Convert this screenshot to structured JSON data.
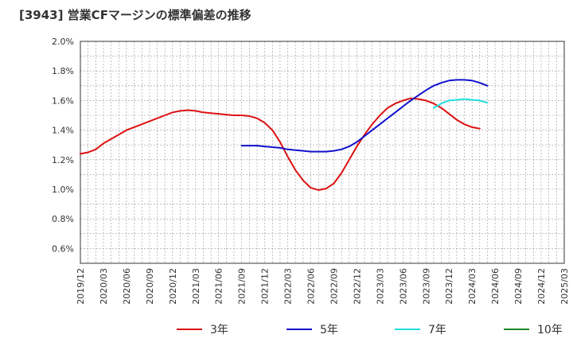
{
  "chart_data": {
    "type": "line",
    "title": "[3943]  営業CFマージンの標準偏差の推移",
    "xlabel": "",
    "ylabel": "",
    "y_unit": "%",
    "ylim": [
      0.5,
      2.0
    ],
    "y_ticks": [
      "0.6%",
      "0.8%",
      "1.0%",
      "1.2%",
      "1.4%",
      "1.6%",
      "1.8%",
      "2.0%"
    ],
    "x_ticks": [
      "2019/12",
      "2020/03",
      "2020/06",
      "2020/09",
      "2020/12",
      "2021/03",
      "2021/06",
      "2021/09",
      "2021/12",
      "2022/03",
      "2022/06",
      "2022/09",
      "2022/12",
      "2023/03",
      "2023/06",
      "2023/09",
      "2023/12",
      "2024/03",
      "2024/06",
      "2024/09",
      "2024/12",
      "2025/03"
    ],
    "grid": true,
    "legend_position": "bottom",
    "series": [
      {
        "name": "3年",
        "color": "#dd1111",
        "points": [
          [
            "2019/12",
            1.24
          ],
          [
            "2020/01",
            1.25
          ],
          [
            "2020/02",
            1.27
          ],
          [
            "2020/03",
            1.31
          ],
          [
            "2020/04",
            1.34
          ],
          [
            "2020/05",
            1.37
          ],
          [
            "2020/06",
            1.4
          ],
          [
            "2020/07",
            1.42
          ],
          [
            "2020/08",
            1.44
          ],
          [
            "2020/09",
            1.46
          ],
          [
            "2020/10",
            1.48
          ],
          [
            "2020/11",
            1.5
          ],
          [
            "2020/12",
            1.52
          ],
          [
            "2021/01",
            1.53
          ],
          [
            "2021/02",
            1.535
          ],
          [
            "2021/03",
            1.53
          ],
          [
            "2021/04",
            1.52
          ],
          [
            "2021/05",
            1.515
          ],
          [
            "2021/06",
            1.51
          ],
          [
            "2021/07",
            1.505
          ],
          [
            "2021/08",
            1.5
          ],
          [
            "2021/09",
            1.5
          ],
          [
            "2021/10",
            1.495
          ],
          [
            "2021/11",
            1.48
          ],
          [
            "2021/12",
            1.45
          ],
          [
            "2022/01",
            1.4
          ],
          [
            "2022/02",
            1.32
          ],
          [
            "2022/03",
            1.22
          ],
          [
            "2022/04",
            1.13
          ],
          [
            "2022/05",
            1.06
          ],
          [
            "2022/06",
            1.01
          ],
          [
            "2022/07",
            0.995
          ],
          [
            "2022/08",
            1.005
          ],
          [
            "2022/09",
            1.04
          ],
          [
            "2022/10",
            1.11
          ],
          [
            "2022/11",
            1.2
          ],
          [
            "2022/12",
            1.29
          ],
          [
            "2023/01",
            1.37
          ],
          [
            "2023/02",
            1.44
          ],
          [
            "2023/03",
            1.5
          ],
          [
            "2023/04",
            1.55
          ],
          [
            "2023/05",
            1.58
          ],
          [
            "2023/06",
            1.6
          ],
          [
            "2023/07",
            1.615
          ],
          [
            "2023/08",
            1.61
          ],
          [
            "2023/09",
            1.6
          ],
          [
            "2023/10",
            1.58
          ],
          [
            "2023/11",
            1.55
          ],
          [
            "2023/12",
            1.51
          ],
          [
            "2024/01",
            1.47
          ],
          [
            "2024/02",
            1.44
          ],
          [
            "2024/03",
            1.42
          ],
          [
            "2024/04",
            1.41
          ]
        ]
      },
      {
        "name": "5年",
        "color": "#1111cc",
        "points": [
          [
            "2021/09",
            1.295
          ],
          [
            "2021/10",
            1.295
          ],
          [
            "2021/11",
            1.295
          ],
          [
            "2021/12",
            1.29
          ],
          [
            "2022/01",
            1.285
          ],
          [
            "2022/02",
            1.28
          ],
          [
            "2022/03",
            1.27
          ],
          [
            "2022/04",
            1.265
          ],
          [
            "2022/05",
            1.26
          ],
          [
            "2022/06",
            1.255
          ],
          [
            "2022/07",
            1.255
          ],
          [
            "2022/08",
            1.255
          ],
          [
            "2022/09",
            1.26
          ],
          [
            "2022/10",
            1.27
          ],
          [
            "2022/11",
            1.29
          ],
          [
            "2022/12",
            1.32
          ],
          [
            "2023/01",
            1.36
          ],
          [
            "2023/02",
            1.4
          ],
          [
            "2023/03",
            1.44
          ],
          [
            "2023/04",
            1.48
          ],
          [
            "2023/05",
            1.52
          ],
          [
            "2023/06",
            1.56
          ],
          [
            "2023/07",
            1.6
          ],
          [
            "2023/08",
            1.635
          ],
          [
            "2023/09",
            1.67
          ],
          [
            "2023/10",
            1.7
          ],
          [
            "2023/11",
            1.72
          ],
          [
            "2023/12",
            1.735
          ],
          [
            "2024/01",
            1.74
          ],
          [
            "2024/02",
            1.74
          ],
          [
            "2024/03",
            1.735
          ],
          [
            "2024/04",
            1.72
          ],
          [
            "2024/05",
            1.7
          ]
        ]
      },
      {
        "name": "7年",
        "color": "#22dddd",
        "points": [
          [
            "2023/10",
            1.55
          ],
          [
            "2023/11",
            1.58
          ],
          [
            "2023/12",
            1.6
          ],
          [
            "2024/01",
            1.605
          ],
          [
            "2024/02",
            1.61
          ],
          [
            "2024/03",
            1.605
          ],
          [
            "2024/04",
            1.6
          ],
          [
            "2024/05",
            1.585
          ]
        ]
      },
      {
        "name": "10年",
        "color": "#228822",
        "points": []
      }
    ]
  }
}
